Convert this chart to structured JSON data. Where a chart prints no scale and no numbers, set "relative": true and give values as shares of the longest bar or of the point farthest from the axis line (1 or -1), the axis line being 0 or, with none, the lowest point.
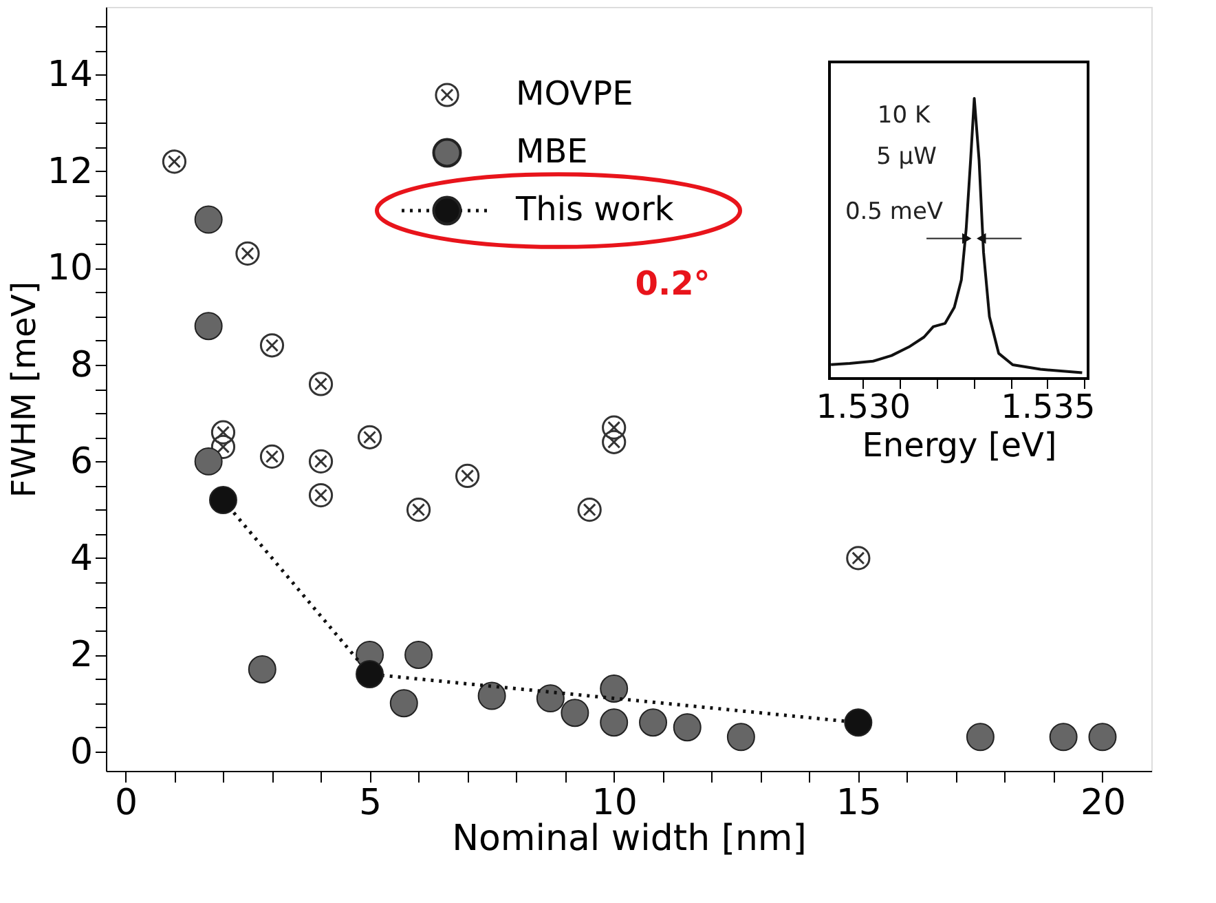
{
  "chart_data": [
    {
      "type": "scatter",
      "xlabel": "Nominal width [nm]",
      "ylabel": "FWHM [meV]",
      "xlim": [
        -0.4,
        21
      ],
      "ylim": [
        -0.4,
        15.4
      ],
      "xticks": [
        0,
        {
          "value": 1,
          "label": null
        },
        {
          "value": 2,
          "label": null
        },
        {
          "value": 3,
          "label": null
        },
        {
          "value": 4,
          "label": null
        },
        5,
        {
          "value": 6,
          "label": null
        },
        {
          "value": 7,
          "label": null
        },
        {
          "value": 8,
          "label": null
        },
        {
          "value": 9,
          "label": null
        },
        10,
        {
          "value": 11,
          "label": null
        },
        {
          "value": 12,
          "label": null
        },
        {
          "value": 13,
          "label": null
        },
        {
          "value": 14,
          "label": null
        },
        15,
        {
          "value": 16,
          "label": null
        },
        {
          "value": 17,
          "label": null
        },
        {
          "value": 18,
          "label": null
        },
        {
          "value": 19,
          "label": null
        },
        20
      ],
      "yticks": [
        0,
        {
          "value": 0.5,
          "label": null
        },
        {
          "value": 1,
          "label": null
        },
        {
          "value": 1.5,
          "label": null
        },
        2,
        {
          "value": 2.5,
          "label": null
        },
        {
          "value": 3,
          "label": null
        },
        {
          "value": 3.5,
          "label": null
        },
        4,
        {
          "value": 4.5,
          "label": null
        },
        {
          "value": 5,
          "label": null
        },
        {
          "value": 5.5,
          "label": null
        },
        6,
        {
          "value": 6.5,
          "label": null
        },
        {
          "value": 7,
          "label": null
        },
        {
          "value": 7.5,
          "label": null
        },
        8,
        {
          "value": 8.5,
          "label": null
        },
        {
          "value": 9,
          "label": null
        },
        {
          "value": 9.5,
          "label": null
        },
        10,
        {
          "value": 10.5,
          "label": null
        },
        {
          "value": 11,
          "label": null
        },
        {
          "value": 11.5,
          "label": null
        },
        12,
        {
          "value": 12.5,
          "label": null
        },
        {
          "value": 13,
          "label": null
        },
        {
          "value": 13.5,
          "label": null
        },
        14,
        {
          "value": 14.5,
          "label": null
        },
        {
          "value": 15,
          "label": null
        }
      ],
      "grid": false,
      "legend": "top",
      "annotations": [
        "0.2°"
      ],
      "series": [
        {
          "name": "MOVPE",
          "color": "#333333",
          "marker": "cross",
          "x": [
            1.0,
            2.5,
            3.0,
            4.0,
            2.0,
            2.0,
            3.0,
            4.0,
            4.0,
            5.0,
            6.0,
            7.0,
            10.0,
            10.0,
            9.5,
            15.0
          ],
          "values": [
            12.2,
            10.3,
            8.4,
            7.6,
            6.6,
            6.3,
            6.1,
            6.0,
            5.3,
            6.5,
            5.0,
            5.7,
            6.7,
            6.4,
            5.0,
            4.0
          ]
        },
        {
          "name": "MBE",
          "color": "#666666",
          "marker": "circle",
          "x": [
            1.7,
            1.7,
            1.7,
            2.8,
            5.0,
            6.0,
            5.7,
            7.5,
            8.7,
            9.2,
            10.0,
            10.0,
            10.8,
            11.5,
            12.6,
            17.5,
            19.2,
            20.0
          ],
          "values": [
            11.0,
            8.8,
            6.0,
            1.7,
            2.0,
            2.0,
            1.0,
            1.15,
            1.1,
            0.8,
            1.3,
            0.6,
            0.6,
            0.5,
            0.3,
            0.3,
            0.3,
            0.3
          ]
        },
        {
          "name": "This work",
          "type": "line",
          "color": "#111111",
          "marker": "circle",
          "line_style": "dotted",
          "x": [
            2.0,
            5.0,
            15.0
          ],
          "values": [
            5.2,
            1.6,
            0.6
          ]
        }
      ]
    },
    {
      "type": "line",
      "xlabel": "Energy [eV]",
      "relative": true,
      "xlim": [
        1.5291,
        1.5361
      ],
      "xticks": [
        {
          "value": 1.53,
          "label": "1.530"
        },
        {
          "value": 1.531,
          "label": null
        },
        {
          "value": 1.532,
          "label": null
        },
        {
          "value": 1.533,
          "label": null
        },
        {
          "value": 1.534,
          "label": null
        },
        {
          "value": 1.535,
          "label": "1.535"
        },
        {
          "value": 1.536,
          "label": null
        }
      ],
      "annotations": [
        "10 K",
        "5 μW",
        "0.5 meV"
      ],
      "series": [
        {
          "color": "#111111",
          "x": [
            1.52914,
            1.52965,
            1.53028,
            1.53078,
            1.53128,
            1.53166,
            1.53191,
            1.53223,
            1.53248,
            1.53267,
            1.5328,
            1.53292,
            1.53302,
            1.53315,
            1.53327,
            1.53343,
            1.53368,
            1.53406,
            1.53481,
            1.53594
          ],
          "values": [
            0.05,
            0.054,
            0.062,
            0.082,
            0.115,
            0.148,
            0.185,
            0.197,
            0.254,
            0.352,
            0.533,
            0.779,
            1.0,
            0.779,
            0.451,
            0.221,
            0.09,
            0.049,
            0.033,
            0.021
          ]
        }
      ]
    }
  ]
}
